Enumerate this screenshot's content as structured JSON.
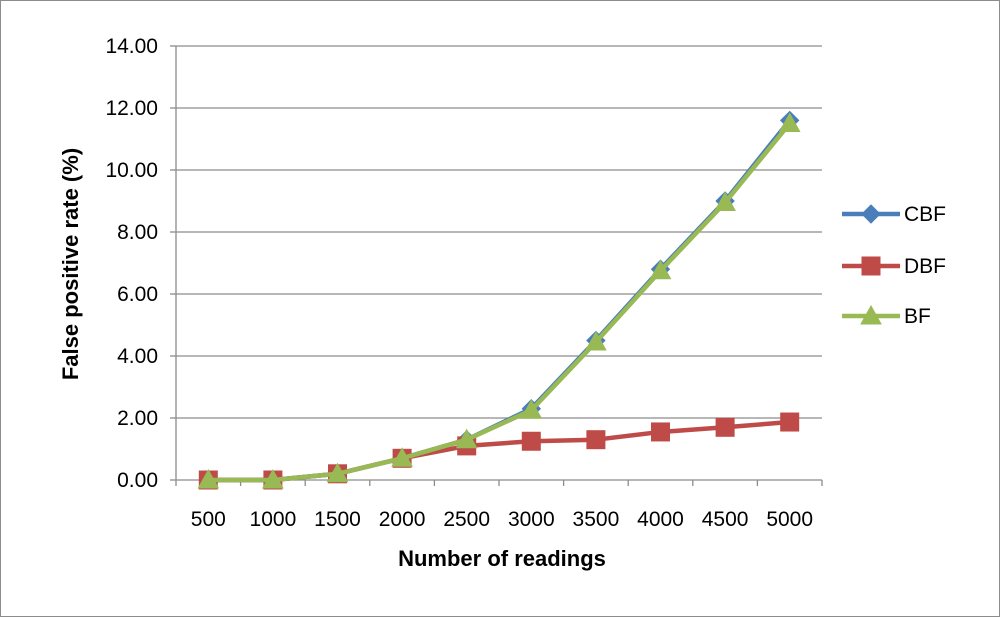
{
  "chart_data": {
    "type": "line",
    "title": "",
    "xlabel": "Number of readings",
    "ylabel": "False positive rate (%)",
    "categories": [
      "500",
      "1000",
      "1500",
      "2000",
      "2500",
      "3000",
      "3500",
      "4000",
      "4500",
      "5000"
    ],
    "ylim": [
      0,
      14
    ],
    "yticks": [
      "0.00",
      "2.00",
      "4.00",
      "6.00",
      "8.00",
      "10.00",
      "12.00",
      "14.00"
    ],
    "grid": true,
    "legend_position": "right",
    "series": [
      {
        "name": "CBF",
        "color": "#4a7ebb",
        "marker": "diamond",
        "values": [
          0,
          0,
          0.2,
          0.7,
          1.3,
          2.3,
          4.5,
          6.8,
          9.0,
          11.6
        ]
      },
      {
        "name": "DBF",
        "color": "#be4b48",
        "marker": "square",
        "values": [
          0,
          0,
          0.2,
          0.7,
          1.1,
          1.25,
          1.3,
          1.55,
          1.7,
          1.87
        ]
      },
      {
        "name": "BF",
        "color": "#98b954",
        "marker": "triangle",
        "values": [
          0,
          0,
          0.2,
          0.7,
          1.3,
          2.25,
          4.45,
          6.75,
          8.95,
          11.5
        ]
      }
    ]
  }
}
